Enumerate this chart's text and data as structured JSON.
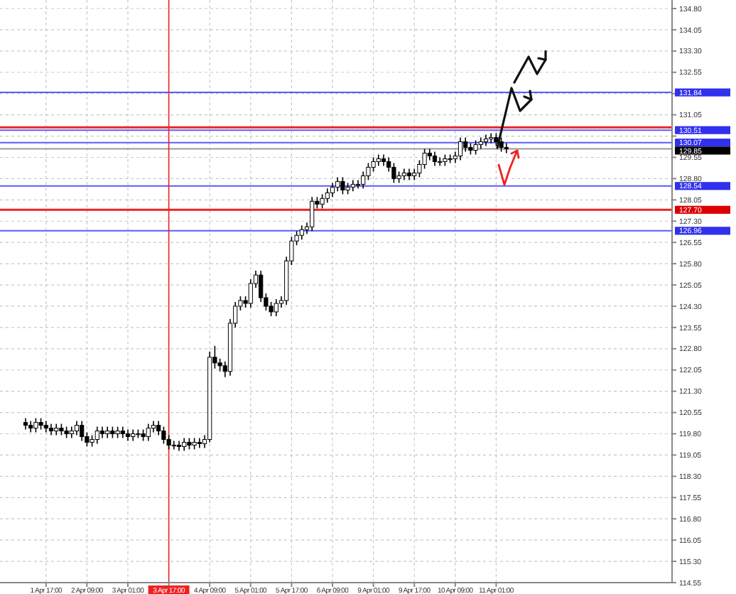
{
  "chart_data": {
    "type": "candlestick",
    "color": "#000000",
    "grid": true,
    "categories": [
      null,
      null,
      null,
      null,
      "1 Apr 17:00",
      null,
      null,
      null,
      null,
      null,
      null,
      null,
      "2 Apr 09:00",
      null,
      null,
      null,
      null,
      null,
      null,
      null,
      "3 Apr 01:00",
      null,
      null,
      null,
      null,
      null,
      null,
      null,
      "3 Apr 17:00",
      null,
      null,
      null,
      null,
      null,
      null,
      null,
      "4 Apr 09:00",
      null,
      null,
      null,
      null,
      null,
      null,
      null,
      "5 Apr 01:00",
      null,
      null,
      null,
      null,
      null,
      null,
      null,
      "5 Apr 17:00",
      null,
      null,
      null,
      null,
      null,
      null,
      null,
      "6 Apr 09:00",
      null,
      null,
      null,
      null,
      null,
      null,
      null,
      "9 Apr 01:00",
      null,
      null,
      null,
      null,
      null,
      null,
      null,
      "9 Apr 17:00",
      null,
      null,
      null,
      null,
      null,
      null,
      null,
      "10 Apr 09:00",
      null,
      null,
      null,
      null,
      null,
      null,
      null,
      "11 Apr 01:00",
      null,
      null,
      null,
      null,
      null,
      null,
      null,
      null,
      null,
      null,
      null,
      null,
      null,
      null,
      null,
      null,
      null,
      null,
      null,
      null,
      null,
      null,
      null,
      null,
      null,
      null,
      null,
      null,
      null,
      null,
      null,
      null,
      null
    ],
    "ohlc": [
      [
        120.2,
        120.35,
        119.95,
        120.1
      ],
      [
        120.1,
        120.25,
        119.85,
        120.0
      ],
      [
        120.0,
        120.35,
        119.85,
        120.2
      ],
      [
        120.2,
        120.35,
        119.95,
        120.1
      ],
      [
        120.1,
        120.25,
        119.85,
        120.0
      ],
      [
        120.0,
        120.15,
        119.75,
        119.9
      ],
      [
        119.9,
        120.15,
        119.75,
        120.0
      ],
      [
        120.0,
        120.15,
        119.75,
        119.9
      ],
      [
        119.9,
        120.05,
        119.65,
        119.8
      ],
      [
        119.8,
        120.05,
        119.65,
        119.9
      ],
      [
        119.9,
        120.25,
        119.75,
        120.1
      ],
      [
        120.1,
        120.25,
        119.55,
        119.7
      ],
      [
        119.7,
        119.85,
        119.35,
        119.5
      ],
      [
        119.5,
        119.75,
        119.35,
        119.6
      ],
      [
        119.6,
        120.05,
        119.45,
        119.9
      ],
      [
        119.9,
        120.05,
        119.65,
        119.8
      ],
      [
        119.8,
        120.05,
        119.65,
        119.9
      ],
      [
        119.9,
        120.05,
        119.65,
        119.8
      ],
      [
        119.8,
        120.05,
        119.65,
        119.9
      ],
      [
        119.9,
        120.05,
        119.65,
        119.8
      ],
      [
        119.8,
        119.95,
        119.55,
        119.7
      ],
      [
        119.7,
        119.95,
        119.55,
        119.8
      ],
      [
        119.8,
        119.95,
        119.65,
        119.8
      ],
      [
        119.8,
        119.95,
        119.55,
        119.7
      ],
      [
        119.7,
        120.15,
        119.55,
        120.0
      ],
      [
        120.0,
        120.25,
        119.85,
        120.1
      ],
      [
        120.1,
        120.25,
        119.75,
        119.9
      ],
      [
        119.9,
        120.05,
        119.45,
        119.6
      ],
      [
        119.6,
        119.75,
        119.25,
        119.4
      ],
      [
        119.4,
        119.55,
        119.25,
        119.4
      ],
      [
        119.4,
        119.55,
        119.2,
        119.35
      ],
      [
        119.35,
        119.65,
        119.2,
        119.5
      ],
      [
        119.5,
        119.65,
        119.25,
        119.4
      ],
      [
        119.4,
        119.65,
        119.25,
        119.5
      ],
      [
        119.5,
        119.65,
        119.3,
        119.45
      ],
      [
        119.45,
        119.75,
        119.3,
        119.6
      ],
      [
        119.6,
        122.7,
        119.5,
        122.5
      ],
      [
        122.5,
        122.9,
        122.1,
        122.3
      ],
      [
        122.3,
        122.45,
        122.0,
        122.2
      ],
      [
        122.2,
        122.35,
        121.8,
        122.0
      ],
      [
        122.0,
        123.85,
        121.85,
        123.7
      ],
      [
        123.7,
        124.45,
        123.55,
        124.3
      ],
      [
        124.3,
        124.65,
        124.15,
        124.5
      ],
      [
        124.5,
        124.65,
        124.25,
        124.4
      ],
      [
        124.4,
        125.25,
        124.25,
        125.1
      ],
      [
        125.1,
        125.55,
        124.95,
        125.4
      ],
      [
        125.4,
        125.55,
        124.45,
        124.6
      ],
      [
        124.6,
        124.75,
        124.15,
        124.3
      ],
      [
        124.3,
        124.45,
        123.95,
        124.1
      ],
      [
        124.1,
        124.55,
        123.95,
        124.4
      ],
      [
        124.4,
        124.65,
        124.25,
        124.5
      ],
      [
        124.5,
        126.05,
        124.35,
        125.9
      ],
      [
        125.9,
        126.75,
        125.75,
        126.6
      ],
      [
        126.6,
        126.95,
        126.45,
        126.8
      ],
      [
        126.8,
        127.15,
        126.65,
        127.0
      ],
      [
        127.0,
        127.25,
        126.85,
        127.1
      ],
      [
        127.1,
        128.15,
        126.95,
        128.0
      ],
      [
        128.0,
        128.15,
        127.75,
        127.9
      ],
      [
        127.9,
        128.25,
        127.75,
        128.1
      ],
      [
        128.1,
        128.45,
        127.95,
        128.3
      ],
      [
        128.3,
        128.65,
        128.15,
        128.5
      ],
      [
        128.5,
        128.85,
        128.35,
        128.7
      ],
      [
        128.7,
        128.85,
        128.25,
        128.4
      ],
      [
        128.4,
        128.65,
        128.25,
        128.5
      ],
      [
        128.5,
        128.75,
        128.35,
        128.6
      ],
      [
        128.6,
        128.75,
        128.45,
        128.6
      ],
      [
        128.6,
        129.05,
        128.45,
        128.9
      ],
      [
        128.9,
        129.35,
        128.75,
        129.2
      ],
      [
        129.2,
        129.55,
        129.05,
        129.4
      ],
      [
        129.4,
        129.65,
        129.25,
        129.5
      ],
      [
        129.5,
        129.65,
        129.25,
        129.4
      ],
      [
        129.4,
        129.55,
        129.05,
        129.2
      ],
      [
        129.2,
        129.35,
        128.65,
        128.8
      ],
      [
        128.8,
        129.05,
        128.65,
        128.9
      ],
      [
        128.9,
        129.15,
        128.75,
        129.0
      ],
      [
        129.0,
        129.15,
        128.75,
        128.9
      ],
      [
        128.9,
        129.15,
        128.75,
        129.0
      ],
      [
        129.0,
        129.45,
        128.85,
        129.3
      ],
      [
        129.3,
        129.85,
        129.15,
        129.7
      ],
      [
        129.7,
        129.85,
        129.45,
        129.6
      ],
      [
        129.6,
        129.75,
        129.25,
        129.4
      ],
      [
        129.4,
        129.55,
        129.25,
        129.4
      ],
      [
        129.4,
        129.65,
        129.25,
        129.5
      ],
      [
        129.5,
        129.65,
        129.35,
        129.5
      ],
      [
        129.5,
        129.75,
        129.35,
        129.6
      ],
      [
        129.6,
        130.25,
        129.45,
        130.1
      ],
      [
        130.1,
        130.25,
        129.75,
        129.9
      ],
      [
        129.9,
        130.05,
        129.65,
        129.8
      ],
      [
        129.8,
        130.15,
        129.65,
        130.0
      ],
      [
        130.0,
        130.25,
        129.85,
        130.1
      ],
      [
        130.1,
        130.35,
        129.95,
        130.2
      ],
      [
        130.2,
        130.4,
        130.05,
        130.25
      ],
      [
        130.25,
        130.4,
        129.95,
        130.1
      ],
      [
        130.1,
        130.25,
        129.75,
        129.9
      ],
      [
        129.9,
        130.05,
        129.7,
        129.85
      ],
      null,
      null,
      null,
      null,
      null,
      null,
      null,
      null,
      null,
      null,
      null,
      null,
      null,
      null,
      null,
      null,
      null,
      null,
      null,
      null,
      null,
      null,
      null,
      null,
      null,
      null,
      null,
      null,
      null,
      null,
      null
    ],
    "ylim": [
      114.55,
      134.85
    ],
    "yticks": [
      {
        "value": 114.55,
        "label": "114.55"
      },
      {
        "value": 115.3,
        "label": "115.30"
      },
      {
        "value": 116.05,
        "label": "116.05"
      },
      {
        "value": 116.8,
        "label": "116.80"
      },
      {
        "value": 117.55,
        "label": "117.55"
      },
      {
        "value": 118.3,
        "label": "118.30"
      },
      {
        "value": 119.05,
        "label": "119.05"
      },
      {
        "value": 119.8,
        "label": "119.80"
      },
      {
        "value": 120.55,
        "label": "120.55"
      },
      {
        "value": 121.3,
        "label": "121.30"
      },
      {
        "value": 122.05,
        "label": "122.05"
      },
      {
        "value": 122.8,
        "label": "122.80"
      },
      {
        "value": 123.55,
        "label": "123.55"
      },
      {
        "value": 124.3,
        "label": "124.30"
      },
      {
        "value": 125.05,
        "label": "125.05"
      },
      {
        "value": 125.8,
        "label": "125.80"
      },
      {
        "value": 126.55,
        "label": "126.55"
      },
      {
        "value": 127.3,
        "label": "127.30"
      },
      {
        "value": 128.05,
        "label": "128.05"
      },
      {
        "value": 128.8,
        "label": "128.80"
      },
      {
        "value": 129.55,
        "label": "129.55"
      },
      {
        "value": 130.3,
        "label": null
      },
      {
        "value": 131.05,
        "label": "131.05"
      },
      {
        "value": 131.8,
        "label": null
      },
      {
        "value": 132.55,
        "label": "132.55"
      },
      {
        "value": 133.3,
        "label": "133.30"
      },
      {
        "value": 134.05,
        "label": "134.05"
      },
      {
        "value": 134.8,
        "label": "134.80"
      }
    ],
    "ref_lines": [
      {
        "axis": "y",
        "value": 131.84,
        "label": "131.84",
        "color": "#5a5aff"
      },
      {
        "axis": "y",
        "value": 130.61,
        "color": "#ee2222"
      },
      {
        "axis": "y",
        "value": 130.51,
        "label": "130.51",
        "color": "#5a5aff"
      },
      {
        "axis": "y",
        "value": 130.07,
        "label": "130.07",
        "color": "#5a5aff"
      },
      {
        "axis": "y",
        "value": 129.85,
        "label": "129.85",
        "color": "#999999"
      },
      {
        "axis": "y",
        "value": 128.54,
        "label": "128.54",
        "color": "#5a5aff"
      },
      {
        "axis": "y",
        "value": 127.7,
        "label": "127.70",
        "color": "#ee2222"
      },
      {
        "axis": "y",
        "value": 126.96,
        "label": "126.96",
        "color": "#5a5aff"
      },
      {
        "axis": "x",
        "value": "3 Apr 17:00",
        "color": "#ee2222"
      }
    ]
  }
}
